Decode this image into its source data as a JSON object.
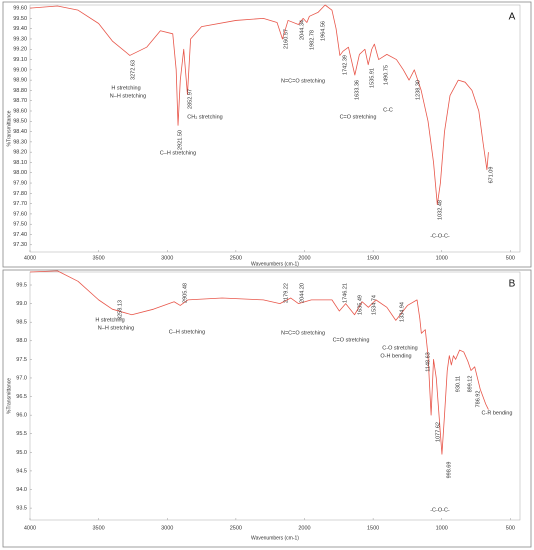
{
  "chart_data": [
    {
      "type": "line",
      "panel_label": "A",
      "x_label": "Wavenumbers (cm-1)",
      "y_label": "%Transmittance",
      "color": "#e8564a",
      "xlim": [
        4000,
        430
      ],
      "xticks": [
        4000,
        3500,
        3000,
        2500,
        2000,
        1500,
        1000,
        500
      ],
      "ylim": [
        97.23,
        99.63
      ],
      "yticks": [
        {
          "value": 99.6,
          "label": "99.60"
        },
        {
          "value": 99.5,
          "label": "99.50"
        },
        {
          "value": 99.4,
          "label": "99.40"
        },
        {
          "value": 99.3,
          "label": "99.30"
        },
        {
          "value": 99.2,
          "label": "99.20"
        },
        {
          "value": 99.1,
          "label": "99.10"
        },
        {
          "value": 99.0,
          "label": "99.00"
        },
        {
          "value": 98.9,
          "label": "98.90"
        },
        {
          "value": 98.8,
          "label": "98.80"
        },
        {
          "value": 98.7,
          "label": "98.70"
        },
        {
          "value": 98.6,
          "label": "98.60"
        },
        {
          "value": 98.5,
          "label": "98.50"
        },
        {
          "value": 98.4,
          "label": "98.40"
        },
        {
          "value": 98.3,
          "label": "98.30"
        },
        {
          "value": 98.2,
          "label": "98.20"
        },
        {
          "value": 98.1,
          "label": "98.10"
        },
        {
          "value": 98.0,
          "label": "98.00"
        },
        {
          "value": 97.9,
          "label": "97.90"
        },
        {
          "value": 97.8,
          "label": "97.80"
        },
        {
          "value": 97.7,
          "label": "97.70"
        },
        {
          "value": 97.6,
          "label": "97.60"
        },
        {
          "value": 97.5,
          "label": "97.50"
        },
        {
          "value": 97.4,
          "label": "97.40"
        },
        {
          "value": 97.3,
          "label": "97.30"
        }
      ],
      "x": [
        4000,
        3800,
        3650,
        3500,
        3400,
        3272.63,
        3150,
        3050,
        2960,
        2935,
        2921.5,
        2905,
        2880,
        2852.97,
        2830,
        2750,
        2500,
        2300,
        2200,
        2160.57,
        2120,
        2044.34,
        2010,
        1982.78,
        1964.56,
        1900,
        1850,
        1800,
        1770,
        1742.39,
        1720,
        1680,
        1633.36,
        1600,
        1560,
        1535.91,
        1510,
        1490.75,
        1460,
        1400,
        1330,
        1280,
        1238.3,
        1200,
        1150,
        1100,
        1060,
        1032.48,
        1010,
        980,
        940,
        880,
        830,
        780,
        730,
        700,
        671.09,
        660
      ],
      "values": [
        99.6,
        99.62,
        99.58,
        99.45,
        99.28,
        99.14,
        99.22,
        99.38,
        99.35,
        99.0,
        98.46,
        98.9,
        99.2,
        98.76,
        99.3,
        99.42,
        99.48,
        99.5,
        99.46,
        99.3,
        99.48,
        99.44,
        99.5,
        99.46,
        99.52,
        99.56,
        99.63,
        99.58,
        99.4,
        99.14,
        99.18,
        99.22,
        98.95,
        99.15,
        99.2,
        99.05,
        99.2,
        99.25,
        99.1,
        99.15,
        99.1,
        99.0,
        98.9,
        99.0,
        98.8,
        98.5,
        98.1,
        97.69,
        97.9,
        98.4,
        98.75,
        98.9,
        98.88,
        98.8,
        98.6,
        98.3,
        98.03,
        98.2
      ],
      "peak_labels": [
        "3272.63",
        "2921.50",
        "2852.97",
        "2160.57",
        "2044.34",
        "1982.78",
        "1964.56",
        "1742.39",
        "1633.36",
        "1535.91",
        "1490.75",
        "1238.30",
        "1032.48",
        "671.09"
      ],
      "annotations": [
        "H stretching",
        "N–H stretching",
        "CH₂ stretching",
        "C–H stretching",
        "N=C=O stretching",
        "C=O stretching",
        "C-C",
        "-C-O-C-"
      ]
    },
    {
      "type": "line",
      "panel_label": "B",
      "x_label": "Wavenumbers (cm-1)",
      "y_label": "%Transmittance",
      "color": "#e8564a",
      "xlim": [
        4000,
        430
      ],
      "xticks": [
        4000,
        3500,
        3000,
        2500,
        2000,
        1500,
        1000,
        500
      ],
      "ylim": [
        93.18,
        99.85
      ],
      "yticks": [
        99.5,
        {
          "value": 99.0,
          "label": "99.0"
        },
        98.5,
        {
          "value": 98.0,
          "label": "98.0"
        },
        97.5,
        {
          "value": 97.0,
          "label": "97.0"
        },
        96.5,
        {
          "value": 96.0,
          "label": "96.0"
        },
        95.5,
        {
          "value": 95.0,
          "label": "95.0"
        },
        94.5,
        {
          "value": 94.0,
          "label": "94.0"
        },
        93.5
      ],
      "x": [
        4000,
        3800,
        3650,
        3500,
        3400,
        3258.13,
        3100,
        2950,
        2905.48,
        2850,
        2600,
        2300,
        2179.22,
        2100,
        2044.2,
        1950,
        1800,
        1746.21,
        1700,
        1635.49,
        1580,
        1534.74,
        1480,
        1400,
        1334.94,
        1250,
        1180,
        1160,
        1148.63,
        1120,
        1100,
        1077.62,
        1060,
        1040,
        1020,
        998.69,
        980,
        960,
        945,
        930.11,
        915,
        899.12,
        870,
        840,
        810,
        786.92,
        760,
        720,
        680,
        660
      ],
      "values": [
        99.85,
        99.88,
        99.6,
        99.1,
        98.85,
        98.7,
        98.85,
        99.05,
        98.95,
        99.1,
        99.15,
        99.1,
        99.0,
        99.15,
        99.0,
        99.1,
        99.1,
        98.8,
        99.0,
        98.7,
        99.05,
        98.9,
        99.1,
        98.9,
        98.55,
        98.95,
        99.1,
        98.6,
        98.2,
        98.3,
        97.6,
        96.0,
        97.5,
        97.0,
        96.0,
        94.95,
        96.0,
        97.2,
        97.6,
        97.35,
        97.6,
        97.5,
        97.75,
        97.7,
        97.45,
        97.2,
        97.3,
        96.7,
        96.3,
        96.15
      ],
      "peak_labels": [
        "3258.13",
        "2905.48",
        "2179.22",
        "2044.20",
        "1746.21",
        "1635.49",
        "1534.74",
        "1334.94",
        "1148.63",
        "1077.62",
        "998.69",
        "930.11",
        "899.12",
        "786.92"
      ],
      "annotations": [
        "H stretching",
        "N–H stretching",
        "C–H stretching",
        "N=C=O stretching",
        "C=O stretching",
        "C-O stretching",
        "O-H bending",
        "C-R bending",
        "-C-O-C-"
      ]
    }
  ]
}
